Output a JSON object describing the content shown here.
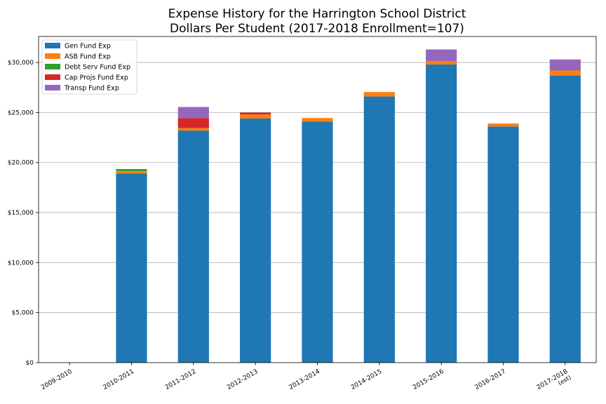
{
  "chart_data": {
    "type": "bar",
    "stacked": true,
    "title": [
      "Expense History for the Harrington School District",
      "Dollars Per Student (2017-2018 Enrollment=107)"
    ],
    "xlabel": "",
    "ylabel": "",
    "categories": [
      "2009-2010",
      "2010-2011",
      "2011-2012",
      "2012-2013",
      "2013-2014",
      "2014-2015",
      "2015-2016",
      "2016-2017",
      "2017-2018\n(est)"
    ],
    "ylim": [
      0,
      32600
    ],
    "yticks": [
      0,
      5000,
      10000,
      15000,
      20000,
      25000,
      30000
    ],
    "ytick_labels": [
      "$0",
      "$5,000",
      "$10,000",
      "$15,000",
      "$20,000",
      "$25,000",
      "$30,000"
    ],
    "grid": "horizontal",
    "legend_position": "top-left",
    "series": [
      {
        "name": "Gen Fund Exp",
        "color": "#1f77b4",
        "values": [
          0,
          18900,
          23200,
          24400,
          24100,
          26600,
          29800,
          23600,
          28700
        ]
      },
      {
        "name": "ASB Fund Exp",
        "color": "#ff7f0e",
        "values": [
          0,
          250,
          250,
          400,
          350,
          450,
          350,
          300,
          500
        ]
      },
      {
        "name": "Debt Serv Fund Exp",
        "color": "#2ca02c",
        "values": [
          0,
          200,
          0,
          0,
          0,
          0,
          0,
          0,
          0
        ]
      },
      {
        "name": "Cap Projs Fund Exp",
        "color": "#d62728",
        "values": [
          0,
          0,
          1000,
          200,
          0,
          0,
          0,
          0,
          0
        ]
      },
      {
        "name": "Transp Fund Exp",
        "color": "#9467bd",
        "values": [
          0,
          0,
          1100,
          0,
          0,
          0,
          1150,
          0,
          1100
        ]
      }
    ]
  }
}
